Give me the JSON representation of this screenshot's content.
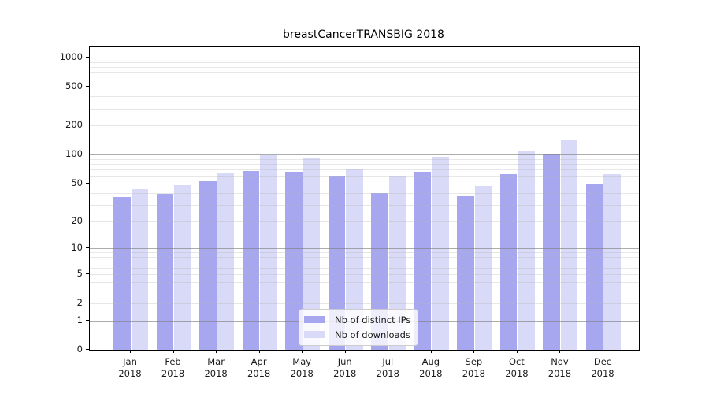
{
  "chart_data": {
    "type": "bar",
    "title": "breastCancerTRANSBIG 2018",
    "categories": [
      "Jan",
      "Feb",
      "Mar",
      "Apr",
      "May",
      "Jun",
      "Jul",
      "Aug",
      "Sep",
      "Oct",
      "Nov",
      "Dec"
    ],
    "x_tick_second_line": "2018",
    "series": [
      {
        "name": "Nb of distinct IPs",
        "color": "#a7a7f0",
        "values": [
          36,
          39,
          53,
          68,
          66,
          61,
          40,
          66,
          37,
          63,
          100,
          49
        ]
      },
      {
        "name": "Nb of downloads",
        "color": "#d9d9f8",
        "values": [
          44,
          48,
          65,
          98,
          91,
          70,
          61,
          96,
          47,
          110,
          140,
          63
        ]
      }
    ],
    "y_scale": "log1p",
    "y_ticks": [
      0,
      1,
      2,
      5,
      10,
      20,
      50,
      100,
      200,
      500,
      1000
    ],
    "y_axis_top": 1280,
    "xlabel": "",
    "ylabel": "",
    "grid": true,
    "legend_position": "lower center"
  }
}
